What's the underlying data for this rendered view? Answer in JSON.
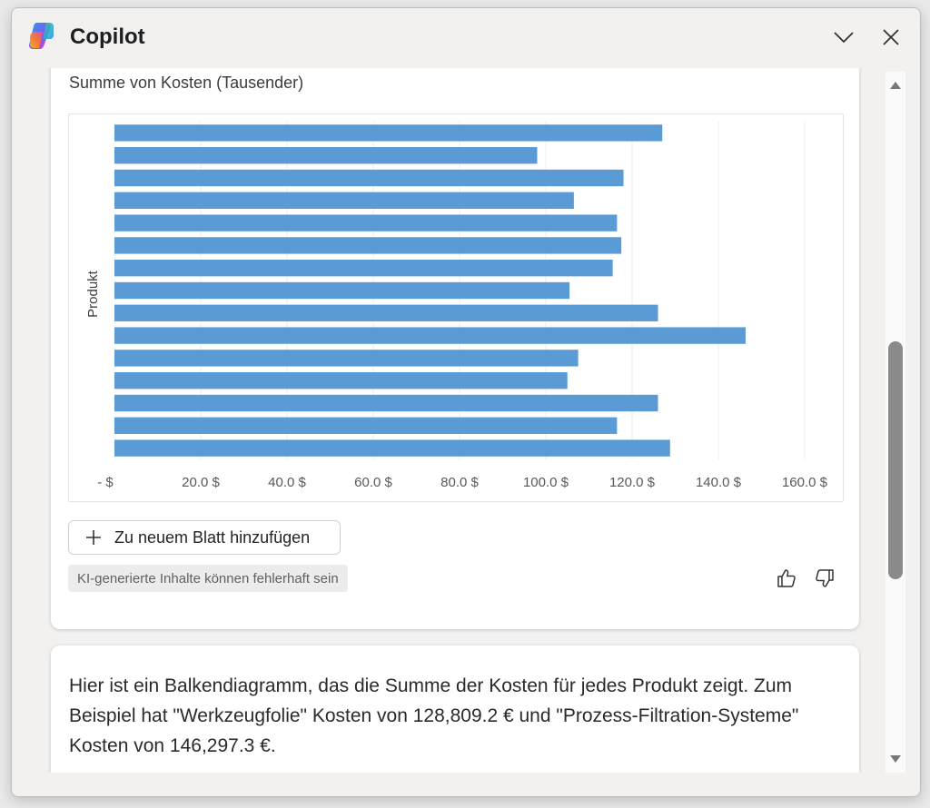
{
  "window": {
    "title": "Copilot"
  },
  "titlebar": {
    "minimize_icon": "chevron-down-icon",
    "close_icon": "close-icon"
  },
  "chart_card": {
    "title": "Summe von Kosten (Tausender)",
    "add_sheet_label": "Zu neuem Blatt hinzufügen",
    "disclaimer": "KI-generierte Inhalte können fehlerhaft sein"
  },
  "message": {
    "text": "Hier ist ein Balkendiagramm, das die Summe der Kosten für jedes Produkt zeigt. Zum Beispiel hat \"Werkzeugfolie\" Kosten von 128,809.2 € und \"Prozess-Filtration-Systeme\" Kosten von 146,297.3 €."
  },
  "colors": {
    "bar": "#5b9bd5",
    "card": "#ffffff",
    "panel": "#f2f1ef"
  },
  "chart_data": {
    "type": "bar",
    "orientation": "horizontal",
    "title": "Summe von Kosten (Tausender)",
    "ylabel": "Produkt",
    "xlabel": "",
    "xlim": [
      0,
      160
    ],
    "x_ticks": [
      "-   $",
      "20.0 $",
      "40.0 $",
      "60.0 $",
      "80.0 $",
      "100.0 $",
      "120.0 $",
      "140.0 $",
      "160.0 $"
    ],
    "grid": true,
    "values": [
      127,
      98,
      118,
      106.5,
      116.5,
      117.5,
      115.5,
      105.5,
      126,
      146.3,
      107.5,
      105,
      126,
      116.5,
      128.8
    ]
  },
  "scroll": {
    "position": 0.55
  }
}
